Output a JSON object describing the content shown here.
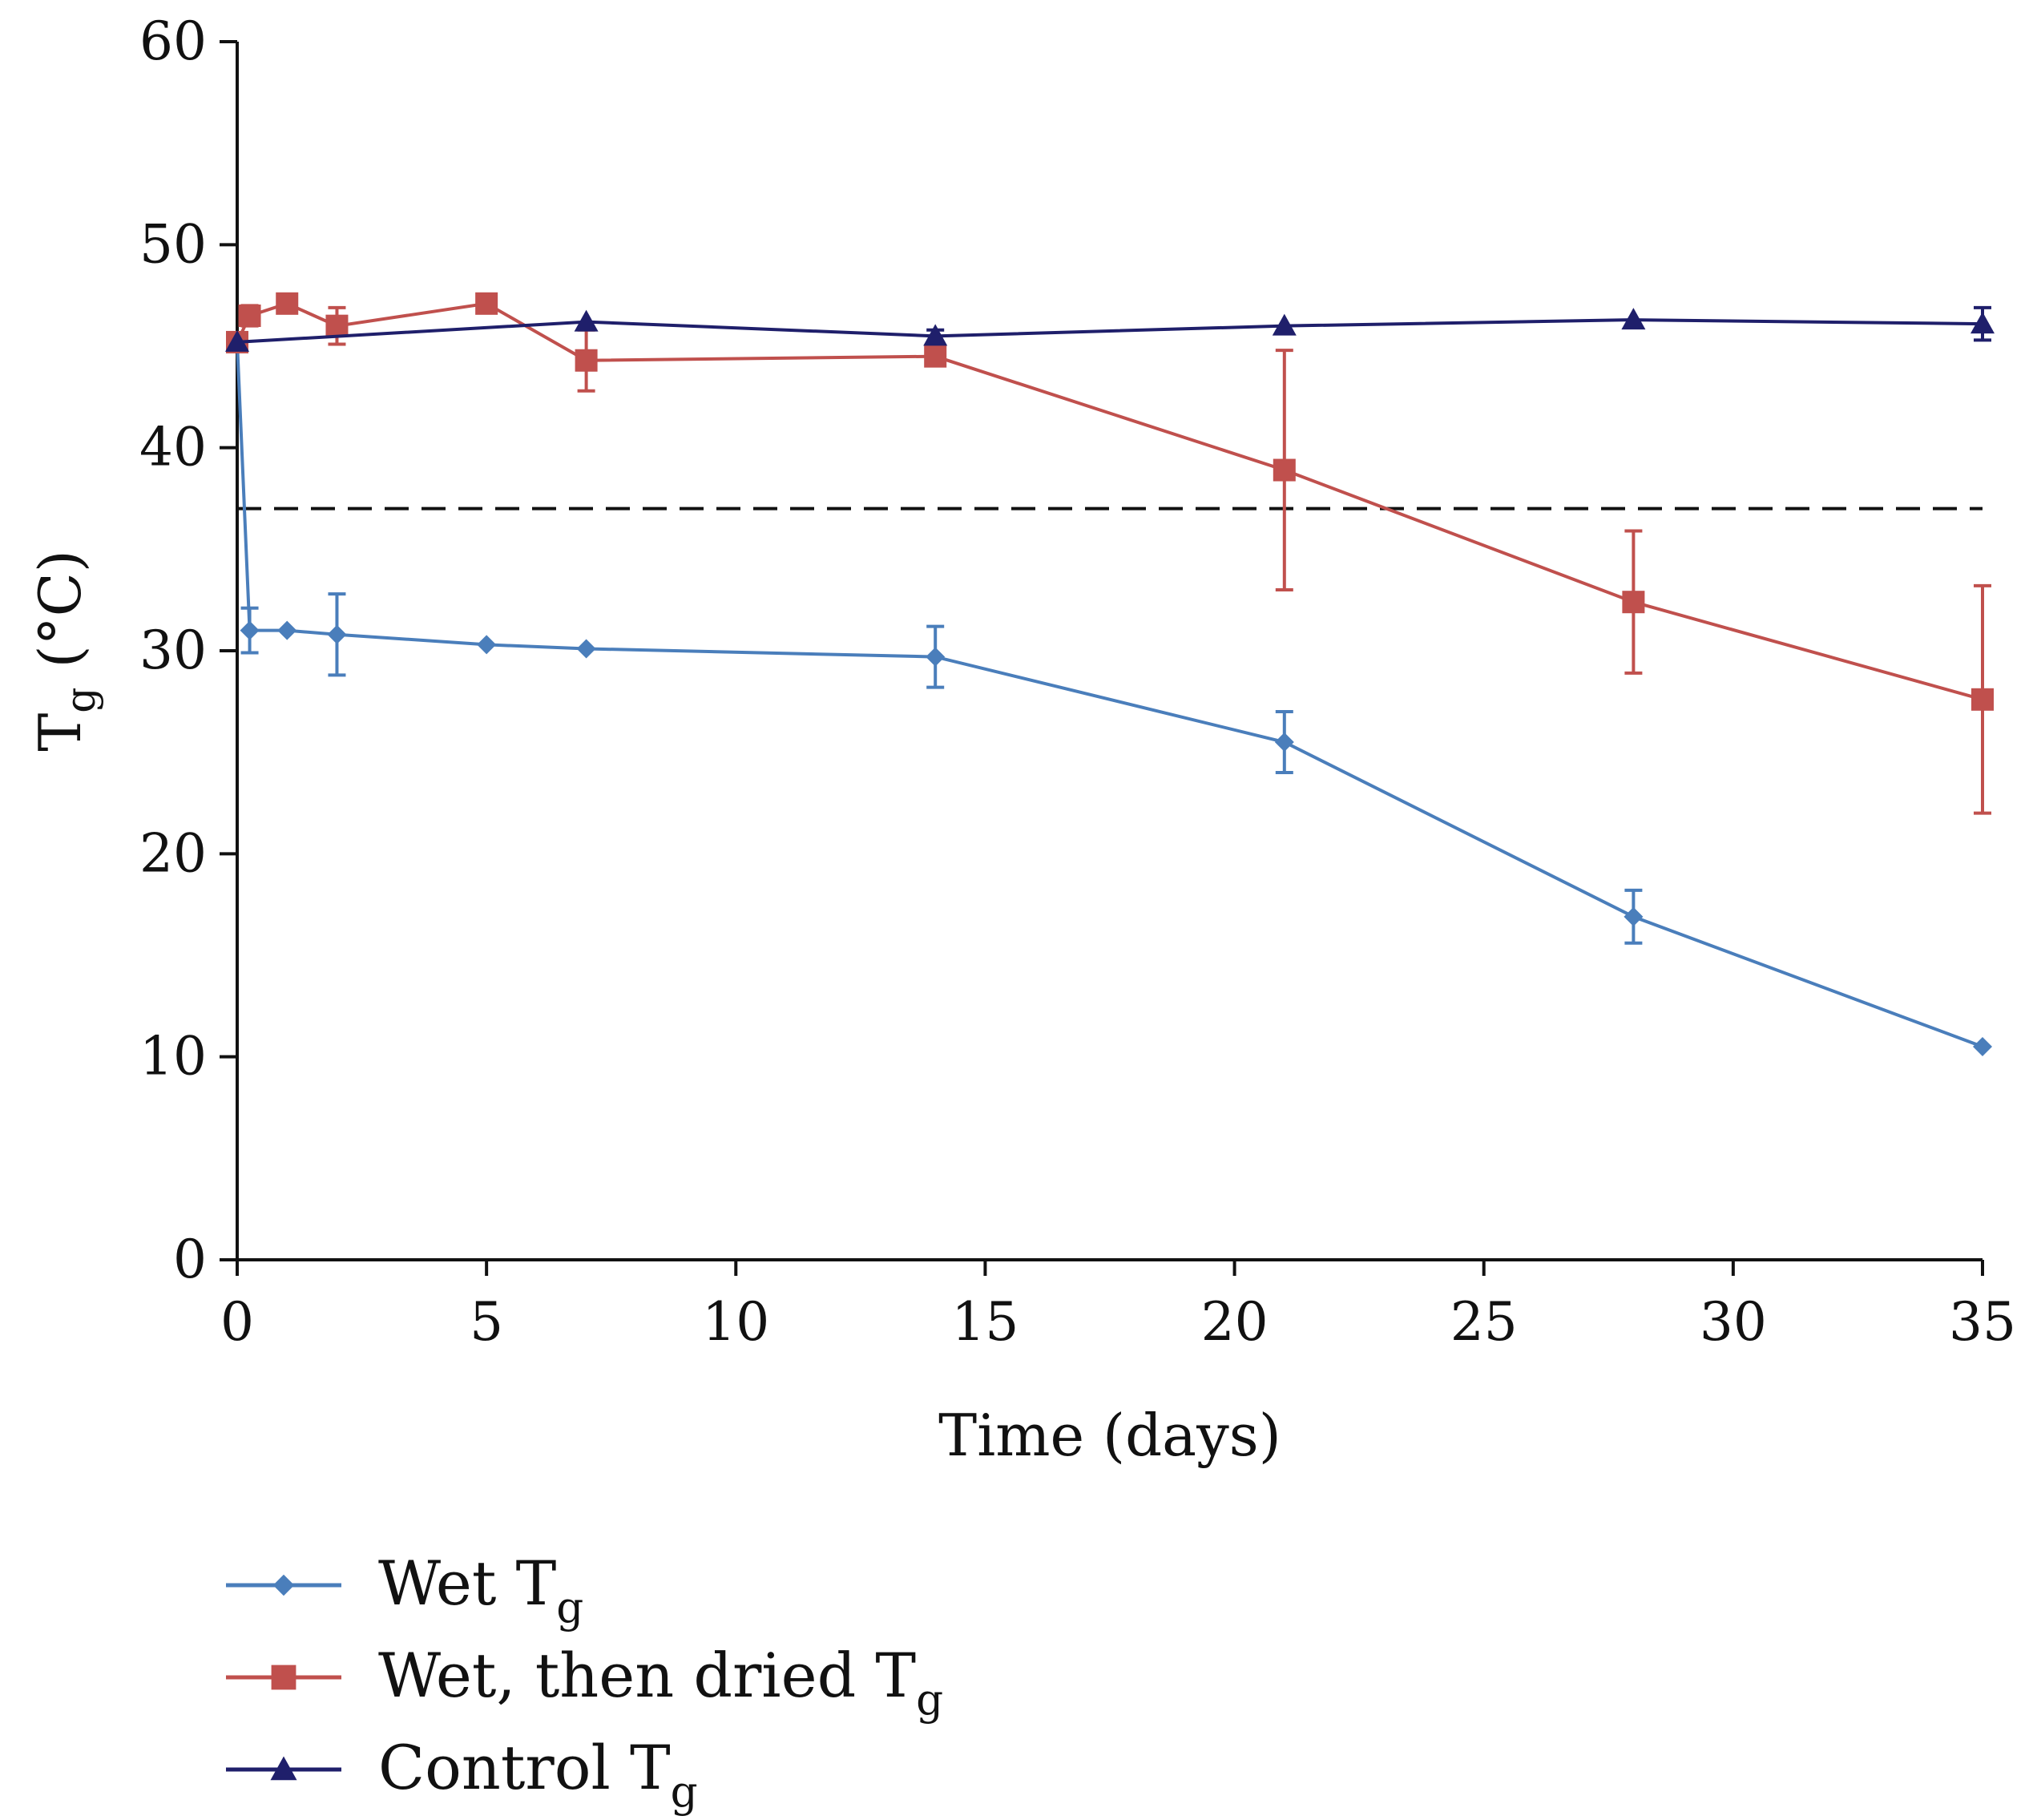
{
  "chart_data": {
    "type": "line",
    "title": "",
    "xlabel": "Time (days)",
    "ylabel": {
      "main": "T",
      "sub": "g",
      "unit": "(°C)"
    },
    "xlim": [
      0,
      35
    ],
    "ylim": [
      0,
      60
    ],
    "xticks": [
      "0",
      "5",
      "10",
      "15",
      "20",
      "25",
      "30",
      "35"
    ],
    "yticks": [
      "0",
      "10",
      "20",
      "30",
      "40",
      "50",
      "60"
    ],
    "xtick_values": [
      0,
      5,
      10,
      15,
      20,
      25,
      30,
      35
    ],
    "ytick_values": [
      0,
      10,
      20,
      30,
      40,
      50,
      60
    ],
    "grid": false,
    "legend_position": "bottom-left, below plot",
    "reference_line": {
      "y": 37,
      "style": "dashed",
      "color": "#111111"
    },
    "series": [
      {
        "name": "Wet Tg",
        "label_main": "Wet T",
        "label_sub": "g",
        "color": "#4a7ebb",
        "marker": "diamond",
        "x": [
          0,
          0.25,
          1,
          2,
          5,
          7,
          14,
          21,
          28,
          35
        ],
        "y": [
          45.2,
          31,
          31,
          30.8,
          30.3,
          30.1,
          29.7,
          25.5,
          16.9,
          10.5
        ],
        "err": [
          0,
          1.1,
          0,
          2.0,
          0,
          0,
          1.5,
          1.5,
          1.3,
          0
        ]
      },
      {
        "name": "Wet, then dried Tg",
        "label_main": "Wet, then dried T",
        "label_sub": "g",
        "color": "#c0504d",
        "marker": "square",
        "x": [
          0,
          0.25,
          1,
          2,
          5,
          7,
          14,
          21,
          28,
          35
        ],
        "y": [
          45.2,
          46.5,
          47.1,
          46.0,
          47.1,
          44.3,
          44.5,
          38.9,
          32.4,
          27.6
        ],
        "err": [
          0,
          0.5,
          0.4,
          0.9,
          0.4,
          1.5,
          0.3,
          5.9,
          3.5,
          5.6
        ]
      },
      {
        "name": "Control Tg",
        "label_main": "Control T",
        "label_sub": "g",
        "color": "#1f1f6b",
        "marker": "triangle",
        "x": [
          0,
          7,
          14,
          21,
          28,
          35
        ],
        "y": [
          45.2,
          46.2,
          45.5,
          46.0,
          46.3,
          46.1
        ],
        "err": [
          0,
          0,
          0.3,
          0,
          0,
          0.8
        ]
      }
    ]
  }
}
